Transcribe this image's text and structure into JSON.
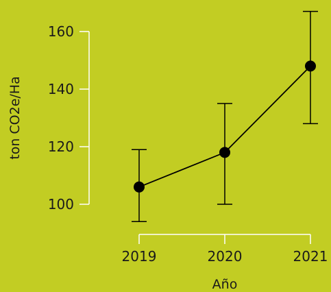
{
  "chart_data": {
    "type": "line",
    "title": "",
    "xlabel": "Año",
    "ylabel": "ton CO2e/Ha",
    "x": [
      "2019",
      "2020",
      "2021"
    ],
    "y": [
      106,
      118,
      148
    ],
    "error_low": [
      94,
      100,
      128
    ],
    "error_high": [
      119,
      135,
      167
    ],
    "xtick_labels": [
      "2019",
      "2020",
      "2021"
    ],
    "yticks": [
      100,
      120,
      140,
      160
    ],
    "ylim": [
      92,
      168
    ],
    "grid": false,
    "legend": "none",
    "colors": {
      "background": "#c2cd23",
      "axis": "#ffffff",
      "marks": "#000000",
      "text": "#1a1a1a"
    }
  }
}
